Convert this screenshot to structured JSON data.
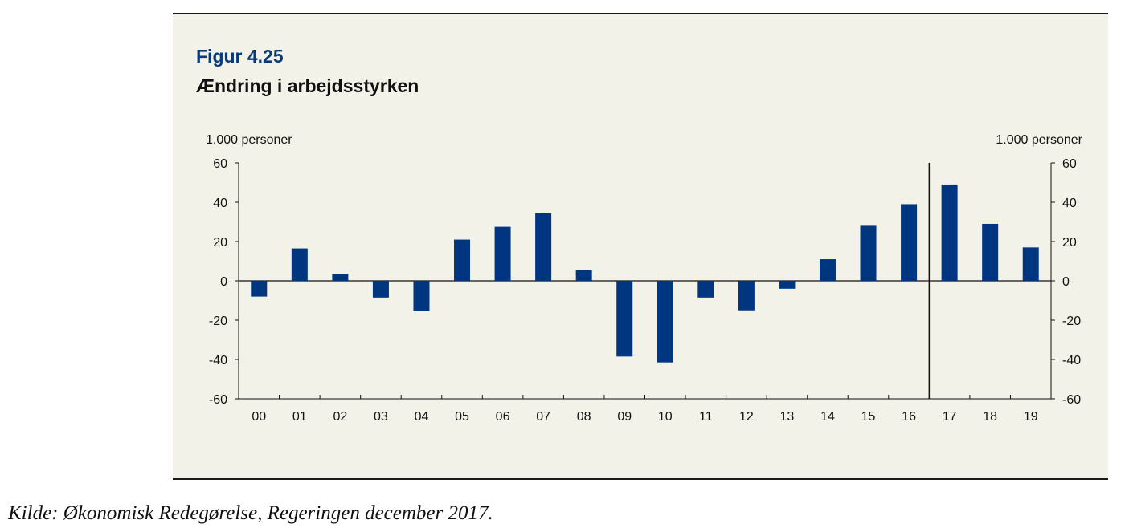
{
  "figure": {
    "number": "Figur 4.25",
    "title": "Ændring i arbejdsstyrken",
    "source": "Kilde: Økonomisk Redegørelse, Regeringen december 2017."
  },
  "chart_data": {
    "type": "bar",
    "categories": [
      "00",
      "01",
      "02",
      "03",
      "04",
      "05",
      "06",
      "07",
      "08",
      "09",
      "10",
      "11",
      "12",
      "13",
      "14",
      "15",
      "16",
      "17",
      "18",
      "19"
    ],
    "values": [
      -8,
      16.5,
      3.5,
      -8.5,
      -15.5,
      21,
      27.5,
      34.5,
      5.5,
      -38.5,
      -41.5,
      -8.5,
      -15,
      -4,
      11,
      28,
      39,
      49,
      29,
      17
    ],
    "y_left_label": "1.000 personer",
    "y_right_label": "1.000 personer",
    "ylim": [
      -60,
      60
    ],
    "yticks": [
      "60",
      "40",
      "20",
      "0",
      "-20",
      "-40",
      "-60"
    ],
    "ytick_values": [
      60,
      40,
      20,
      0,
      -20,
      -40,
      -60
    ],
    "forecast_divider_after": "16",
    "bar_color": "#003580",
    "grid": false,
    "legend": "none"
  }
}
